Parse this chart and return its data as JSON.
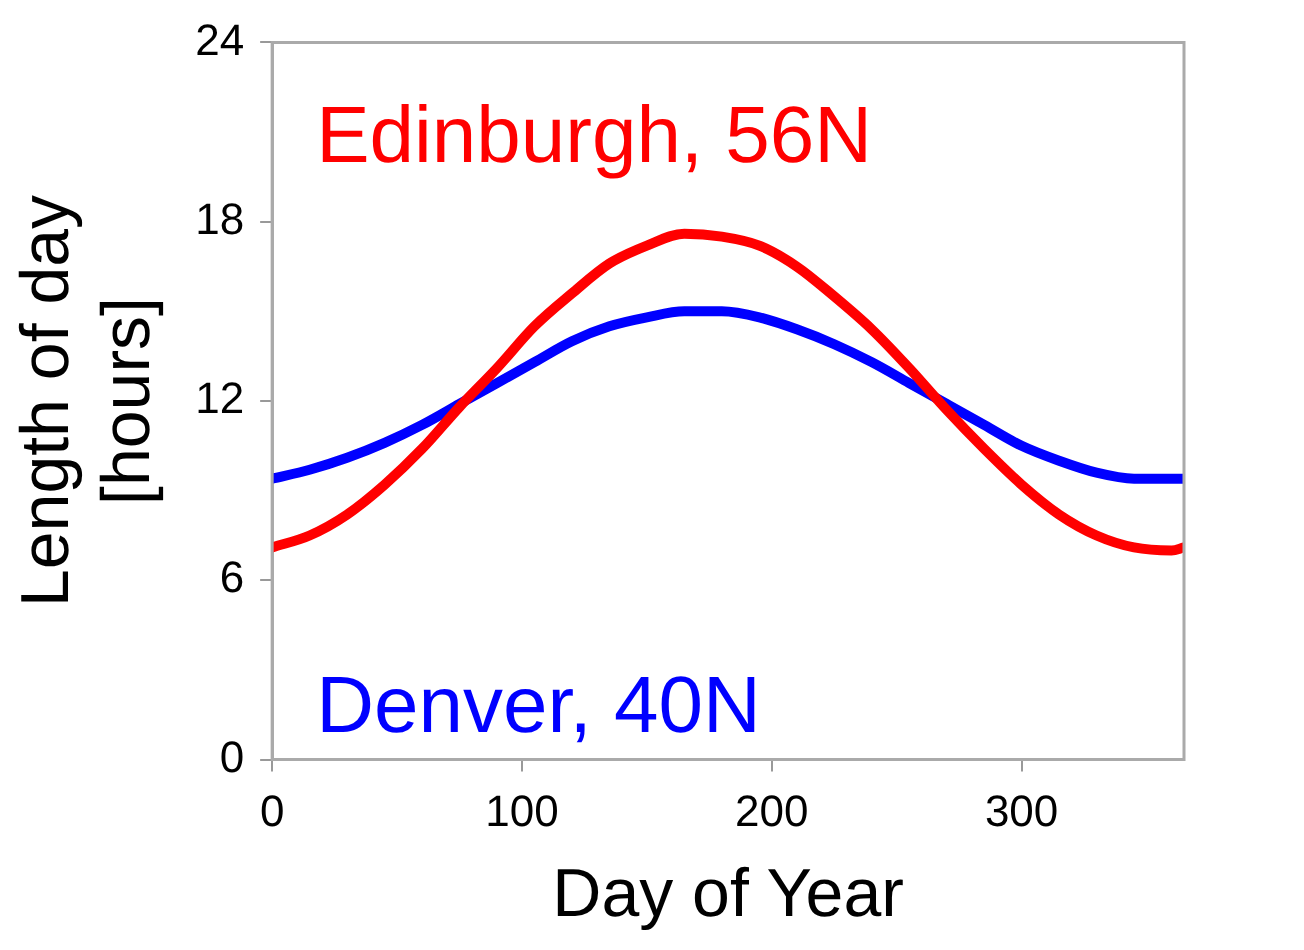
{
  "chart_data": {
    "type": "line",
    "xlabel": "Day of Year",
    "ylabel": "Length of day\n[hours]",
    "xlim": [
      0,
      365
    ],
    "xticks": [
      0,
      100,
      200,
      300
    ],
    "ylim": [
      0,
      24
    ],
    "yticks": [
      0,
      6,
      12,
      18,
      24
    ],
    "grid": false,
    "legend": false,
    "marker": "none",
    "line_style": "solid",
    "x": [
      0,
      15,
      30,
      45,
      60,
      75,
      90,
      105,
      120,
      135,
      150,
      165,
      180,
      195,
      210,
      225,
      240,
      255,
      270,
      285,
      300,
      315,
      330,
      345,
      360,
      365
    ],
    "series": [
      {
        "name": "Edinburgh, 56N",
        "color": "#ff0000",
        "values": [
          7.1,
          7.5,
          8.2,
          9.2,
          10.4,
          11.8,
          13.1,
          14.5,
          15.6,
          16.6,
          17.2,
          17.6,
          17.5,
          17.2,
          16.5,
          15.5,
          14.4,
          13.1,
          11.7,
          10.4,
          9.2,
          8.2,
          7.5,
          7.1,
          7.0,
          7.1
        ]
      },
      {
        "name": "Denver, 40N",
        "color": "#0000ff",
        "values": [
          9.4,
          9.7,
          10.1,
          10.6,
          11.2,
          11.9,
          12.6,
          13.3,
          14.0,
          14.5,
          14.8,
          15.0,
          15.0,
          14.8,
          14.4,
          13.9,
          13.3,
          12.6,
          11.9,
          11.2,
          10.5,
          10.0,
          9.6,
          9.4,
          9.4,
          9.4
        ]
      }
    ]
  }
}
